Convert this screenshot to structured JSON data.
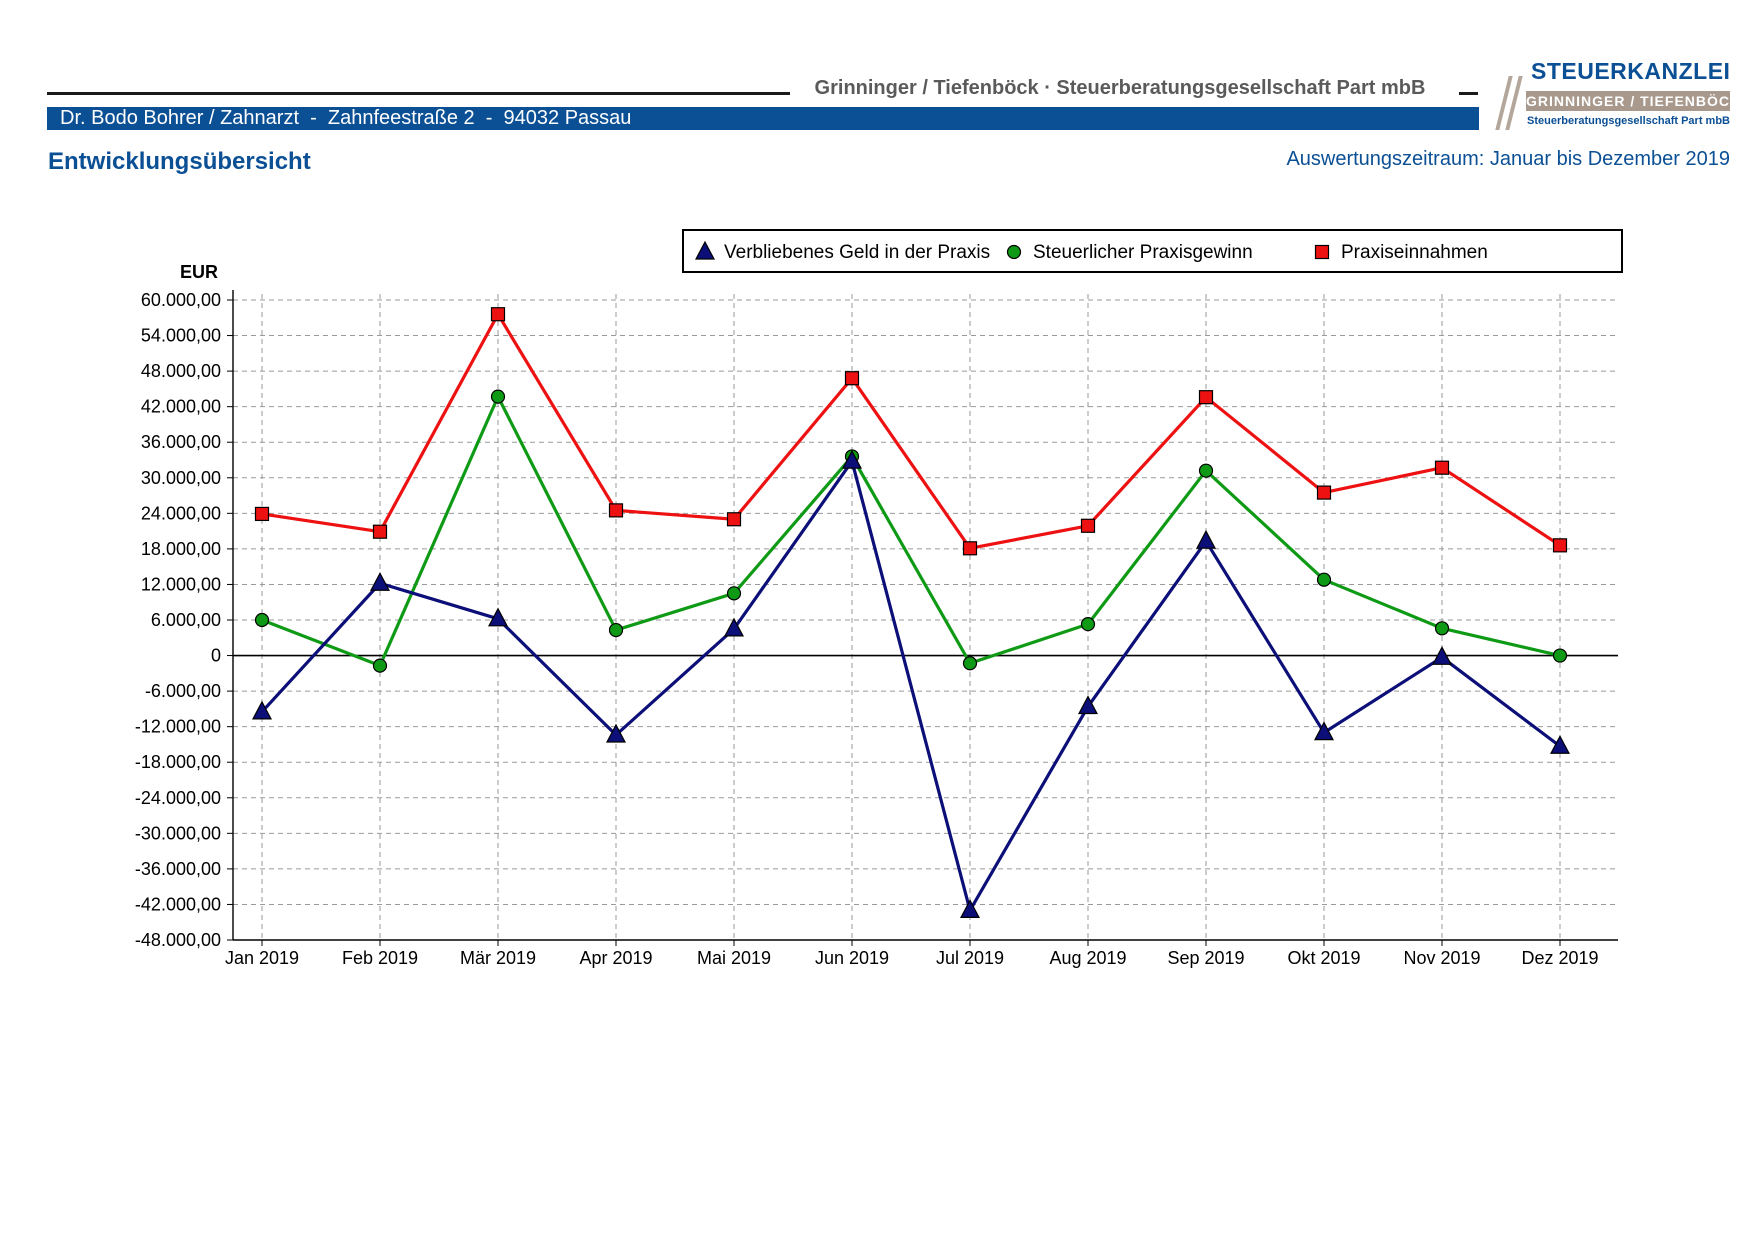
{
  "header": {
    "firm_name": "Grinninger / Tiefenböck · Steuerberatungsgesellschaft Part mbB",
    "client_line": "Dr. Bodo Bohrer / Zahnarzt  -  Zahnfeestraße 2  -  94032 Passau",
    "page_title": "Entwicklungsübersicht",
    "period": "Auswertungszeitraum: Januar bis Dezember 2019"
  },
  "logo": {
    "title": "STEUERKANZLEI",
    "band": "GRINNINGER / TIEFENBÖCK",
    "subtitle": "Steuerberatungsgesellschaft Part mbB"
  },
  "colors": {
    "brand_blue": "#0b4f95",
    "series_navy": "#0c0f78",
    "series_green": "#0f9a15",
    "series_red": "#ee1111"
  },
  "chart_data": {
    "type": "line",
    "ylabel": "EUR",
    "ylim": [
      -48000,
      60000
    ],
    "ytick_step": 6000,
    "yticks": [
      "60.000,00",
      "54.000,00",
      "48.000,00",
      "42.000,00",
      "36.000,00",
      "30.000,00",
      "24.000,00",
      "18.000,00",
      "12.000,00",
      "6.000,00",
      "0",
      "-6.000,00",
      "-12.000,00",
      "-18.000,00",
      "-24.000,00",
      "-30.000,00",
      "-36.000,00",
      "-42.000,00",
      "-48.000,00"
    ],
    "grid": true,
    "legend_position": "top-right",
    "categories": [
      "Jan 2019",
      "Feb 2019",
      "Mär 2019",
      "Apr 2019",
      "Mai 2019",
      "Jun 2019",
      "Jul 2019",
      "Aug 2019",
      "Sep 2019",
      "Okt 2019",
      "Nov 2019",
      "Dez 2019"
    ],
    "series": [
      {
        "name": "Verbliebenes Geld in der Praxis",
        "marker": "triangle",
        "color": "#0c0f78",
        "values": [
          -9500,
          12200,
          6200,
          -13400,
          4500,
          32800,
          -43000,
          -8600,
          19300,
          -13000,
          -300,
          -15300
        ]
      },
      {
        "name": "Steuerlicher Praxisgewinn",
        "marker": "circle",
        "color": "#0f9a15",
        "values": [
          6000,
          -1700,
          43700,
          4300,
          10500,
          33600,
          -1300,
          5300,
          31200,
          12800,
          4600,
          0
        ]
      },
      {
        "name": "Praxiseinnahmen",
        "marker": "square",
        "color": "#ee1111",
        "values": [
          23900,
          20900,
          57600,
          24500,
          23000,
          46800,
          18100,
          21900,
          43600,
          27500,
          31700,
          18600
        ]
      }
    ]
  }
}
